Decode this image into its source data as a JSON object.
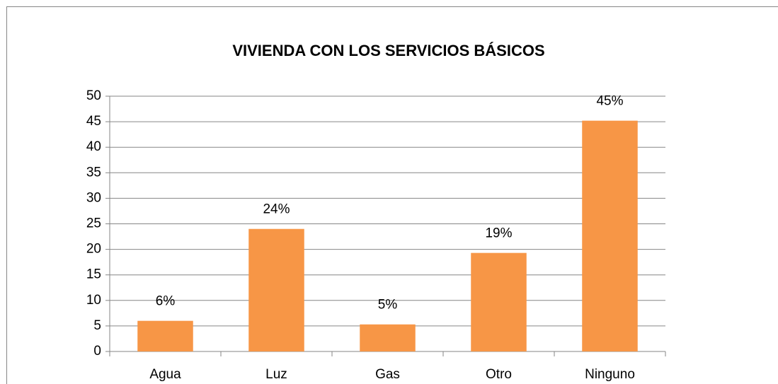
{
  "chart_data": {
    "type": "bar",
    "title": "VIVIENDA CON LOS SERVICIOS BÁSICOS",
    "categories": [
      "Agua",
      "Luz",
      "Gas",
      "Otro",
      "Ninguno"
    ],
    "values": [
      6,
      24,
      5.3,
      19.3,
      45.2
    ],
    "value_labels": [
      "6%",
      "24%",
      "5%",
      "19%",
      "45%"
    ],
    "color": "#f79646",
    "ylim": [
      0,
      50
    ],
    "yticks": [
      0,
      5,
      10,
      15,
      20,
      25,
      30,
      35,
      40,
      45,
      50
    ],
    "grid": true
  }
}
